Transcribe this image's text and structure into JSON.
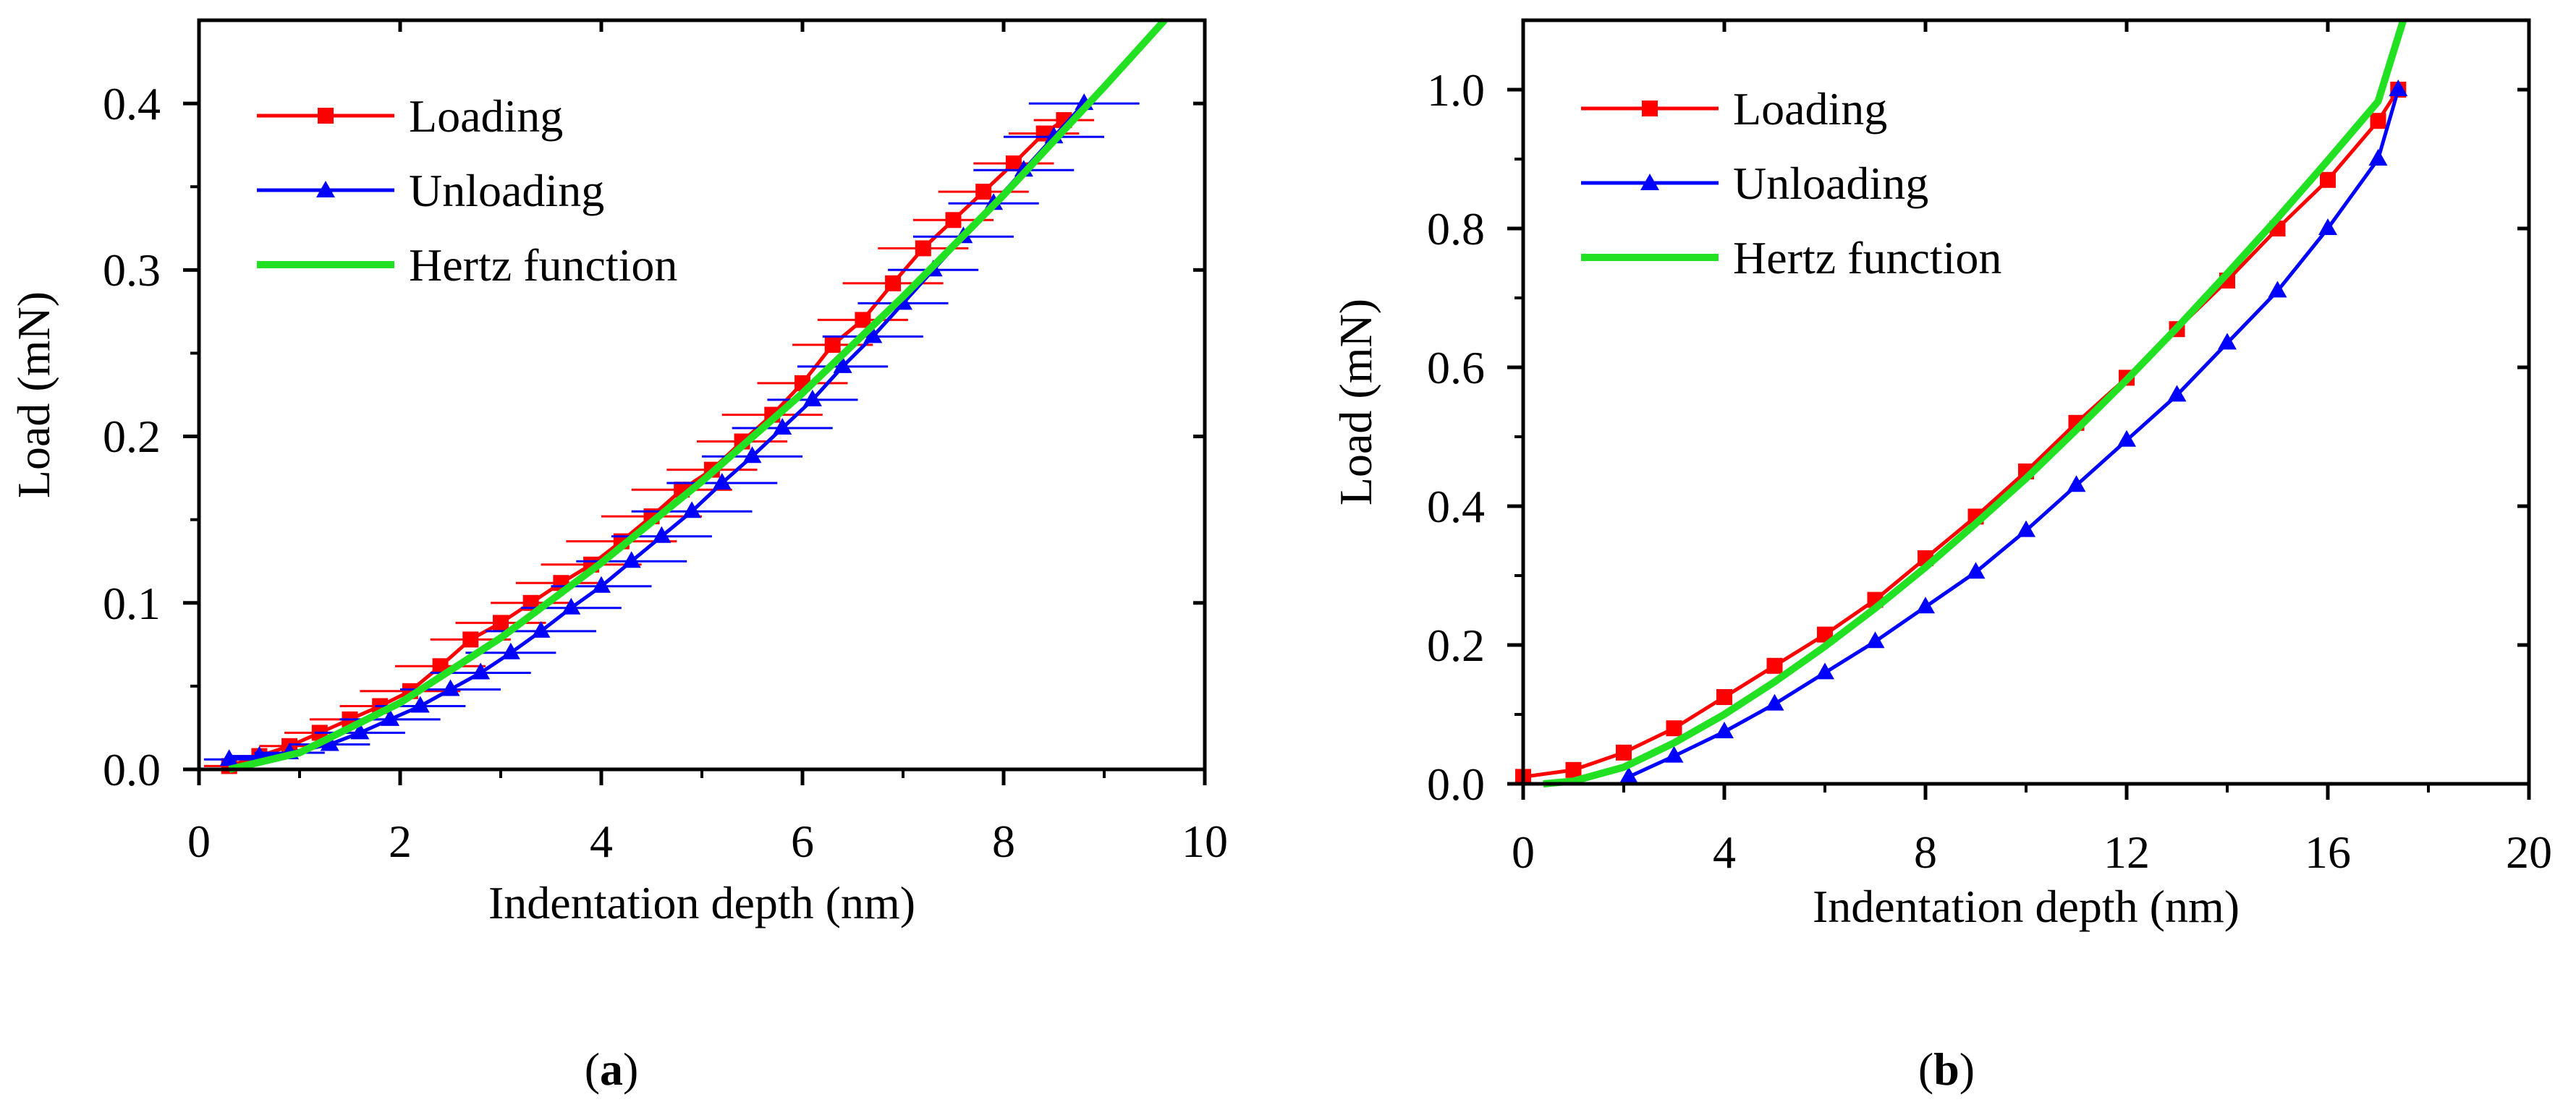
{
  "chart_data": [
    {
      "type": "scatter",
      "panel_label": "a",
      "xlabel": "Indentation depth (nm)",
      "ylabel": "Load (mN)",
      "xlim": [
        0,
        10
      ],
      "ylim": [
        0,
        0.45
      ],
      "x_ticks": [
        0,
        2,
        4,
        6,
        8,
        10
      ],
      "y_ticks": [
        0.0,
        0.1,
        0.2,
        0.3,
        0.4
      ],
      "x_tick_labels": [
        "0",
        "2",
        "4",
        "6",
        "8",
        "10"
      ],
      "y_tick_labels": [
        "0.0",
        "0.1",
        "0.2",
        "0.3",
        "0.4"
      ],
      "legend_position": "top-left",
      "legend": [
        "Loading",
        "Unloading",
        "Hertz function"
      ],
      "series": [
        {
          "name": "Loading",
          "marker": "square",
          "color": "#ff0000",
          "error_bars": "horizontal",
          "x": [
            0.3,
            0.6,
            0.9,
            1.2,
            1.5,
            1.8,
            2.1,
            2.4,
            2.7,
            3.0,
            3.3,
            3.6,
            3.9,
            4.2,
            4.5,
            4.8,
            5.1,
            5.4,
            5.7,
            6.0,
            6.3,
            6.6,
            6.9,
            7.2,
            7.5,
            7.8,
            8.1,
            8.4,
            8.6
          ],
          "y": [
            0.002,
            0.008,
            0.014,
            0.022,
            0.03,
            0.038,
            0.047,
            0.062,
            0.078,
            0.088,
            0.1,
            0.112,
            0.123,
            0.137,
            0.152,
            0.168,
            0.18,
            0.197,
            0.213,
            0.232,
            0.255,
            0.27,
            0.292,
            0.313,
            0.33,
            0.347,
            0.364,
            0.382,
            0.39
          ],
          "xerr": [
            0.25,
            0.3,
            0.3,
            0.35,
            0.4,
            0.4,
            0.5,
            0.45,
            0.4,
            0.45,
            0.4,
            0.45,
            0.5,
            0.55,
            0.5,
            0.5,
            0.45,
            0.45,
            0.5,
            0.45,
            0.4,
            0.45,
            0.5,
            0.45,
            0.4,
            0.45,
            0.4,
            0.35,
            0.3
          ]
        },
        {
          "name": "Unloading",
          "marker": "triangle",
          "color": "#0000ff",
          "error_bars": "horizontal",
          "x": [
            0.3,
            0.6,
            0.9,
            1.3,
            1.6,
            1.9,
            2.2,
            2.5,
            2.8,
            3.1,
            3.4,
            3.7,
            4.0,
            4.3,
            4.6,
            4.9,
            5.2,
            5.5,
            5.8,
            6.1,
            6.4,
            6.7,
            7.0,
            7.3,
            7.6,
            7.9,
            8.2,
            8.5,
            8.8
          ],
          "y": [
            0.006,
            0.008,
            0.01,
            0.015,
            0.022,
            0.03,
            0.038,
            0.048,
            0.058,
            0.07,
            0.083,
            0.097,
            0.11,
            0.125,
            0.14,
            0.155,
            0.172,
            0.188,
            0.205,
            0.222,
            0.242,
            0.26,
            0.28,
            0.3,
            0.32,
            0.34,
            0.36,
            0.38,
            0.4
          ],
          "xerr": [
            0.25,
            0.3,
            0.35,
            0.4,
            0.45,
            0.5,
            0.45,
            0.5,
            0.5,
            0.45,
            0.55,
            0.5,
            0.5,
            0.55,
            0.5,
            0.6,
            0.55,
            0.5,
            0.5,
            0.45,
            0.45,
            0.5,
            0.45,
            0.45,
            0.5,
            0.45,
            0.5,
            0.5,
            0.55
          ]
        },
        {
          "name": "Hertz function",
          "marker": "line",
          "color": "#22e022",
          "x": [
            0.3,
            1.0,
            2.0,
            3.0,
            4.0,
            5.0,
            6.0,
            7.0,
            8.0,
            9.0,
            9.6
          ],
          "y": [
            0.0,
            0.01,
            0.04,
            0.079,
            0.124,
            0.173,
            0.226,
            0.284,
            0.345,
            0.41,
            0.45
          ]
        }
      ]
    },
    {
      "type": "scatter",
      "panel_label": "b",
      "xlabel": "Indentation depth (nm)",
      "ylabel": "Load (mN)",
      "xlim": [
        0,
        20
      ],
      "ylim": [
        0,
        1.1
      ],
      "x_ticks": [
        0,
        4,
        8,
        12,
        16,
        20
      ],
      "y_ticks": [
        0.0,
        0.2,
        0.4,
        0.6,
        0.8,
        1.0
      ],
      "x_tick_labels": [
        "0",
        "4",
        "8",
        "12",
        "16",
        "20"
      ],
      "y_tick_labels": [
        "0.0",
        "0.2",
        "0.4",
        "0.6",
        "0.8",
        "1.0"
      ],
      "legend_position": "top-left",
      "legend": [
        "Loading",
        "Unloading",
        "Hertz function"
      ],
      "series": [
        {
          "name": "Loading",
          "marker": "square",
          "color": "#ff0000",
          "x": [
            0.0,
            1.0,
            2.0,
            3.0,
            4.0,
            5.0,
            6.0,
            7.0,
            8.0,
            9.0,
            10.0,
            11.0,
            12.0,
            13.0,
            14.0,
            15.0,
            16.0,
            17.0,
            17.4
          ],
          "y": [
            0.01,
            0.02,
            0.045,
            0.08,
            0.125,
            0.17,
            0.215,
            0.265,
            0.325,
            0.385,
            0.45,
            0.52,
            0.585,
            0.655,
            0.725,
            0.8,
            0.87,
            0.955,
            1.0
          ]
        },
        {
          "name": "Unloading",
          "marker": "triangle",
          "color": "#0000ff",
          "x": [
            2.1,
            3.0,
            4.0,
            5.0,
            6.0,
            7.0,
            8.0,
            9.0,
            10.0,
            11.0,
            12.0,
            13.0,
            14.0,
            15.0,
            16.0,
            17.0,
            17.4
          ],
          "y": [
            0.01,
            0.04,
            0.075,
            0.115,
            0.16,
            0.205,
            0.255,
            0.305,
            0.365,
            0.43,
            0.495,
            0.56,
            0.635,
            0.71,
            0.8,
            0.9,
            1.0
          ]
        },
        {
          "name": "Hertz function",
          "marker": "line",
          "color": "#22e022",
          "x": [
            0.4,
            1.0,
            2.0,
            3.0,
            4.0,
            5.0,
            6.0,
            7.0,
            8.0,
            9.0,
            10.0,
            11.0,
            12.0,
            13.0,
            14.0,
            15.0,
            16.0,
            17.0,
            17.5
          ],
          "y": [
            0.0,
            0.004,
            0.024,
            0.059,
            0.1,
            0.147,
            0.198,
            0.253,
            0.312,
            0.375,
            0.44,
            0.51,
            0.582,
            0.657,
            0.735,
            0.815,
            0.898,
            0.983,
            1.1
          ]
        }
      ]
    }
  ]
}
